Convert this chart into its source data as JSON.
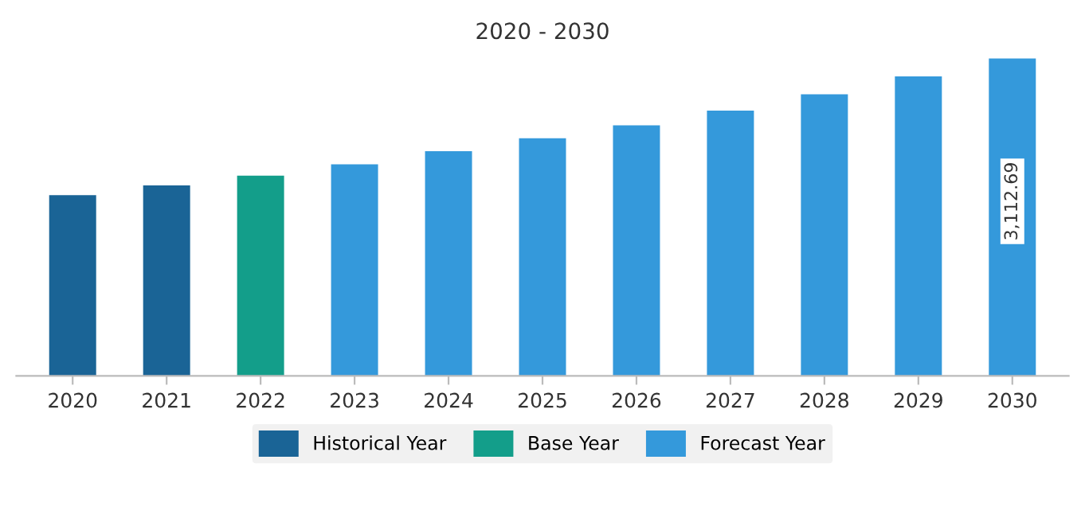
{
  "chart_data": {
    "type": "bar",
    "title": "2020 - 2030",
    "categories": [
      "2020",
      "2021",
      "2022",
      "2023",
      "2024",
      "2025",
      "2026",
      "2027",
      "2028",
      "2029",
      "2030"
    ],
    "series": [
      {
        "name": "Historical Year",
        "color": "#1a6496",
        "values": [
          1772,
          1868,
          null,
          null,
          null,
          null,
          null,
          null,
          null,
          null,
          null
        ]
      },
      {
        "name": "Base Year",
        "color": "#139e8a",
        "values": [
          null,
          null,
          1963,
          null,
          null,
          null,
          null,
          null,
          null,
          null,
          null
        ]
      },
      {
        "name": "Forecast Year",
        "color": "#3499db",
        "values": [
          null,
          null,
          null,
          2075,
          2203,
          2331,
          2458,
          2602,
          2762,
          2937,
          3112.69
        ],
        "value_labels": [
          null,
          null,
          null,
          null,
          null,
          null,
          null,
          null,
          null,
          null,
          "3,112.69"
        ]
      }
    ],
    "legend": "bottom",
    "grid": false,
    "tick_labels": "x"
  }
}
